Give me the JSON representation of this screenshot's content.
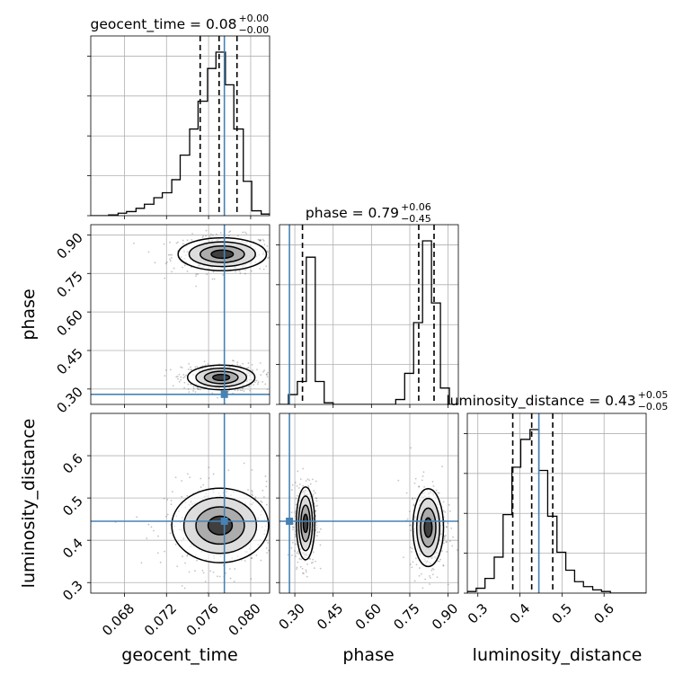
{
  "chart_data": {
    "type": "corner",
    "parameters": [
      "geocent_time",
      "phase",
      "luminosity_distance"
    ],
    "truths": {
      "geocent_time": 0.0775,
      "phase": 0.279,
      "luminosity_distance": 0.445
    },
    "titles": [
      {
        "param": "geocent_time",
        "median": "0.08",
        "plus": "+0.00",
        "minus": "−0.00"
      },
      {
        "param": "phase",
        "median": "0.79",
        "plus": "+0.06",
        "minus": "−0.45"
      },
      {
        "param": "luminosity_distance",
        "median": "0.43",
        "plus": "+0.05",
        "minus": "−0.05"
      }
    ],
    "axes": {
      "geocent_time": {
        "range": [
          0.0648,
          0.0818
        ],
        "ticks": [
          0.068,
          0.072,
          0.076,
          0.08
        ],
        "ticklabels": [
          "0.068",
          "0.072",
          "0.076",
          "0.080"
        ]
      },
      "phase": {
        "range": [
          0.24,
          0.94
        ],
        "ticks": [
          0.3,
          0.45,
          0.6,
          0.75,
          0.9
        ],
        "ticklabels": [
          "0.30",
          "0.45",
          "0.60",
          "0.75",
          "0.90"
        ]
      },
      "luminosity_distance": {
        "range": [
          0.275,
          0.7
        ],
        "ticks": [
          0.3,
          0.4,
          0.5,
          0.6
        ],
        "ticklabels": [
          "0.3",
          "0.4",
          "0.5",
          "0.6"
        ]
      }
    },
    "marginals": {
      "geocent_time": {
        "bin_edges": [
          0.0648,
          0.0657,
          0.0665,
          0.0674,
          0.0682,
          0.0691,
          0.0699,
          0.0708,
          0.0716,
          0.0725,
          0.0733,
          0.0742,
          0.075,
          0.0759,
          0.0767,
          0.0776,
          0.0784,
          0.0793,
          0.0801,
          0.081,
          0.0818
        ],
        "counts": [
          0.0,
          0.0,
          0.5,
          1.5,
          2.5,
          4.5,
          7,
          11,
          14,
          22,
          37,
          53,
          70,
          90,
          100,
          80,
          53,
          21,
          3,
          1
        ],
        "quantiles": [
          0.0752,
          0.077,
          0.0787
        ]
      },
      "phase": {
        "bin_edges": [
          0.24,
          0.275,
          0.31,
          0.345,
          0.38,
          0.415,
          0.45,
          0.485,
          0.52,
          0.555,
          0.59,
          0.625,
          0.66,
          0.695,
          0.73,
          0.765,
          0.8,
          0.835,
          0.87,
          0.905,
          0.94
        ],
        "counts": [
          0,
          6,
          14,
          90,
          14,
          1,
          0,
          0,
          0,
          0,
          0,
          0,
          0,
          3,
          19,
          50,
          100,
          62,
          10,
          0
        ],
        "quantiles": [
          0.33,
          0.785,
          0.845
        ]
      },
      "luminosity_distance": {
        "bin_edges": [
          0.275,
          0.296,
          0.317,
          0.339,
          0.36,
          0.381,
          0.402,
          0.424,
          0.445,
          0.466,
          0.488,
          0.509,
          0.53,
          0.551,
          0.573,
          0.594,
          0.615,
          0.636,
          0.658,
          0.679,
          0.7
        ],
        "counts": [
          1,
          3,
          9,
          22,
          48,
          77,
          94,
          100,
          75,
          47,
          25,
          14,
          7,
          4,
          2,
          1,
          0,
          0,
          0,
          0
        ],
        "quantiles": [
          0.383,
          0.428,
          0.478
        ]
      }
    },
    "joint_modes": [
      {
        "x": "geocent_time",
        "y": "phase",
        "cx": 0.0773,
        "cy": 0.825,
        "sx": 0.0021,
        "sy": 0.032
      },
      {
        "x": "geocent_time",
        "y": "phase",
        "cx": 0.0772,
        "cy": 0.345,
        "sx": 0.0016,
        "sy": 0.024
      },
      {
        "x": "geocent_time",
        "y": "luminosity_distance",
        "cx": 0.0771,
        "cy": 0.435,
        "sx": 0.0023,
        "sy": 0.044
      },
      {
        "x": "phase",
        "y": "luminosity_distance",
        "cx": 0.342,
        "cy": 0.44,
        "sx": 0.018,
        "sy": 0.043
      },
      {
        "x": "phase",
        "y": "luminosity_distance",
        "cx": 0.822,
        "cy": 0.43,
        "sx": 0.03,
        "sy": 0.046
      }
    ],
    "xlabel": {
      "geocent_time": "geocent_time",
      "phase": "phase",
      "luminosity_distance": "luminosity_distance"
    },
    "ylabel": {
      "phase": "phase",
      "luminosity_distance": "luminosity_distance"
    },
    "grid": true,
    "colors": {
      "truth": "#4682b4",
      "hist": "#000000",
      "samples": "#555555"
    }
  }
}
